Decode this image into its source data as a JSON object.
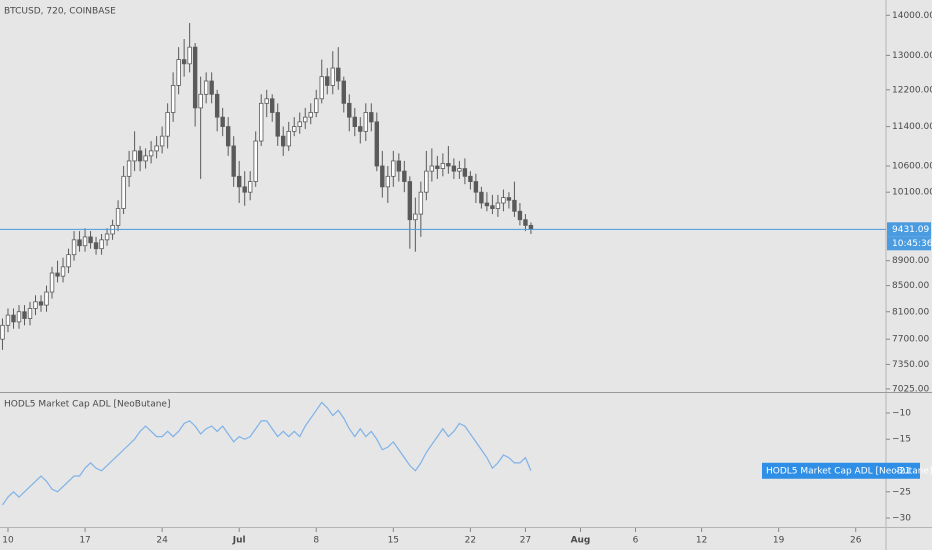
{
  "chart_data": [
    {
      "type": "candlestick",
      "title": "BTCUSD, 720, COINBASE",
      "countdown": "10:45:36",
      "log_scale": true,
      "grid": false,
      "up_color": "#ffffff",
      "down_color": "#5a5a5a",
      "wick_color": "#5a5a5a",
      "price_line_color": "#4a9be0",
      "x": [
        -1,
        0,
        1,
        2,
        3,
        4,
        5,
        6,
        7,
        8,
        9,
        10,
        11,
        12,
        13,
        14,
        15,
        16,
        17,
        18,
        19,
        20,
        21,
        22,
        23,
        24,
        25,
        26,
        27,
        28,
        29,
        30,
        31,
        32,
        33,
        34,
        35,
        36,
        37,
        38,
        39,
        40,
        41,
        42,
        43,
        44,
        45,
        46,
        47,
        48,
        49,
        50,
        51,
        52,
        53,
        54,
        55,
        56,
        57,
        58,
        59,
        60,
        61,
        62,
        63,
        64,
        65,
        66,
        67,
        68,
        69,
        70,
        71,
        72,
        73,
        74,
        75,
        76,
        77,
        78,
        79,
        80,
        81,
        82,
        83,
        84,
        85,
        86,
        87,
        88,
        89,
        90,
        91,
        92,
        93,
        94,
        95
      ],
      "open": [
        7700,
        7900,
        8050,
        7950,
        8100,
        8000,
        8150,
        8250,
        8200,
        8400,
        8700,
        8650,
        8800,
        9000,
        9250,
        9150,
        9300,
        9200,
        9100,
        9250,
        9350,
        9500,
        9800,
        10400,
        10700,
        10900,
        10700,
        10800,
        10900,
        11000,
        11200,
        11700,
        12300,
        12900,
        12800,
        13200,
        11800,
        12100,
        12400,
        12100,
        11600,
        11400,
        11000,
        10400,
        10200,
        10100,
        10300,
        11100,
        11900,
        12000,
        11700,
        11200,
        11000,
        11300,
        11400,
        11500,
        11600,
        11700,
        12000,
        12500,
        12300,
        12700,
        12400,
        11900,
        11600,
        11400,
        11300,
        11700,
        11500,
        10600,
        10200,
        10400,
        10700,
        10500,
        10300,
        9600,
        9700,
        10100,
        10500,
        10600,
        10550,
        10650,
        10600,
        10500,
        10550,
        10400,
        10300,
        10100,
        9900,
        9850,
        9800,
        9900,
        10000,
        9950,
        9750,
        9600,
        9500
      ],
      "high": [
        8000,
        8150,
        8150,
        8200,
        8200,
        8250,
        8350,
        8350,
        8500,
        8800,
        8900,
        8950,
        9100,
        9400,
        9400,
        9450,
        9400,
        9300,
        9350,
        9450,
        9600,
        9950,
        10600,
        10900,
        11300,
        11000,
        10950,
        11100,
        11200,
        11400,
        11900,
        12600,
        13200,
        13400,
        13800,
        13300,
        12500,
        12600,
        12600,
        12200,
        11800,
        11600,
        11200,
        10700,
        10500,
        10500,
        11300,
        12100,
        12200,
        12100,
        11900,
        11400,
        11500,
        11600,
        11700,
        11800,
        11900,
        12200,
        12900,
        12700,
        13100,
        13200,
        12500,
        12100,
        11800,
        11600,
        11900,
        11900,
        11700,
        10900,
        10600,
        10900,
        10850,
        10700,
        10400,
        10000,
        10300,
        10900,
        10950,
        10800,
        10850,
        11000,
        10750,
        10700,
        10750,
        10500,
        10450,
        10200,
        10100,
        10050,
        10050,
        10150,
        10100,
        10300,
        9900,
        9700,
        9550
      ],
      "low": [
        7550,
        7800,
        7850,
        7850,
        7900,
        7900,
        8050,
        8100,
        8100,
        8300,
        8550,
        8550,
        8700,
        8900,
        9050,
        9050,
        9100,
        9000,
        9000,
        9150,
        9250,
        9400,
        9700,
        10200,
        10500,
        10500,
        10550,
        10650,
        10750,
        10850,
        10950,
        11500,
        12100,
        12500,
        12600,
        11400,
        10350,
        11900,
        11900,
        11300,
        11200,
        10800,
        10200,
        9900,
        9850,
        9950,
        10200,
        11000,
        11600,
        11500,
        11000,
        10800,
        10900,
        11200,
        11250,
        11350,
        11450,
        11600,
        11900,
        12100,
        12100,
        12200,
        11700,
        11300,
        11200,
        11050,
        11100,
        11300,
        10500,
        10000,
        9900,
        10200,
        10300,
        10100,
        9100,
        9050,
        9300,
        9950,
        10300,
        10350,
        10400,
        10450,
        10350,
        10350,
        10250,
        10150,
        9900,
        9800,
        9750,
        9700,
        9650,
        9750,
        9800,
        9650,
        9500,
        9400,
        9350
      ],
      "close": [
        7900,
        8050,
        7950,
        8100,
        8000,
        8150,
        8250,
        8200,
        8400,
        8700,
        8650,
        8800,
        9000,
        9250,
        9150,
        9300,
        9200,
        9100,
        9250,
        9350,
        9500,
        9800,
        10400,
        10700,
        10900,
        10700,
        10800,
        10900,
        11000,
        11200,
        11700,
        12300,
        12900,
        12800,
        13200,
        11800,
        12100,
        12400,
        12100,
        11600,
        11400,
        11000,
        10400,
        10200,
        10100,
        10300,
        11100,
        11900,
        12000,
        11700,
        11200,
        11000,
        11300,
        11400,
        11500,
        11600,
        11700,
        12000,
        12500,
        12300,
        12700,
        12400,
        11900,
        11600,
        11400,
        11300,
        11700,
        11500,
        10600,
        10200,
        10400,
        10700,
        10500,
        10300,
        9600,
        9700,
        10100,
        10500,
        10600,
        10550,
        10650,
        10600,
        10500,
        10550,
        10400,
        10300,
        10100,
        9900,
        9850,
        9800,
        9900,
        10000,
        9950,
        9750,
        9600,
        9500,
        9431.09
      ],
      "xlim": [
        -1.45,
        159.5
      ],
      "xticks": [
        {
          "value": 0,
          "label": "10"
        },
        {
          "value": 14,
          "label": "17"
        },
        {
          "value": 28,
          "label": "24"
        },
        {
          "value": 42,
          "label": "Jul"
        },
        {
          "value": 56,
          "label": "8"
        },
        {
          "value": 70,
          "label": "15"
        },
        {
          "value": 84,
          "label": "22"
        },
        {
          "value": 94,
          "label": "27"
        },
        {
          "value": 104,
          "label": "Aug"
        },
        {
          "value": 114,
          "label": "6"
        },
        {
          "value": 126,
          "label": "12"
        },
        {
          "value": 140,
          "label": "19"
        },
        {
          "value": 154,
          "label": "26"
        }
      ],
      "ylim": [
        6985,
        14400
      ],
      "yticks": [
        {
          "value": 14000,
          "label": "14000.00"
        },
        {
          "value": 13000,
          "label": "13000.00"
        },
        {
          "value": 12200,
          "label": "12200.00"
        },
        {
          "value": 11400,
          "label": "11400.00"
        },
        {
          "value": 10600,
          "label": "10600.00"
        },
        {
          "value": 10100,
          "label": "10100.00"
        },
        {
          "value": 8900,
          "label": "8900.00"
        },
        {
          "value": 8500,
          "label": "8500.00"
        },
        {
          "value": 8100,
          "label": "8100.00"
        },
        {
          "value": 7700,
          "label": "7700.00"
        },
        {
          "value": 7350,
          "label": "7350.00"
        },
        {
          "value": 7025,
          "label": "7025.00"
        }
      ]
    },
    {
      "type": "line",
      "x": [
        -1,
        0,
        1,
        2,
        3,
        4,
        5,
        6,
        7,
        8,
        9,
        10,
        11,
        12,
        13,
        14,
        15,
        16,
        17,
        18,
        19,
        20,
        21,
        22,
        23,
        24,
        25,
        26,
        27,
        28,
        29,
        30,
        31,
        32,
        33,
        34,
        35,
        36,
        37,
        38,
        39,
        40,
        41,
        42,
        43,
        44,
        45,
        46,
        47,
        48,
        49,
        50,
        51,
        52,
        53,
        54,
        55,
        56,
        57,
        58,
        59,
        60,
        61,
        62,
        63,
        64,
        65,
        66,
        67,
        68,
        69,
        70,
        71,
        72,
        73,
        74,
        75,
        76,
        77,
        78,
        79,
        80,
        81,
        82,
        83,
        84,
        85,
        86,
        87,
        88,
        89,
        90,
        91,
        92,
        93,
        94,
        95
      ],
      "series": [
        {
          "name": "HODL5 Market Cap ADL [NeoButane]",
          "color": "#7fb2e8",
          "values": [
            -27.5,
            -26,
            -25,
            -26,
            -25,
            -24,
            -23,
            -22,
            -23,
            -24.5,
            -25,
            -24,
            -23,
            -22,
            -22,
            -20.5,
            -19.5,
            -20.5,
            -21,
            -20,
            -19,
            -18,
            -17,
            -16,
            -15,
            -13.5,
            -12.5,
            -13.5,
            -14.5,
            -14.5,
            -13.5,
            -14.5,
            -13.5,
            -12,
            -11.5,
            -12.5,
            -14,
            -13,
            -12.5,
            -13.5,
            -12.5,
            -14,
            -15.5,
            -14.5,
            -15,
            -14.5,
            -13,
            -11.5,
            -11.5,
            -13,
            -14.5,
            -13.5,
            -14.5,
            -13.5,
            -14.5,
            -12.5,
            -11,
            -9.5,
            -8,
            -9,
            -10.5,
            -9.5,
            -11,
            -13,
            -14.5,
            -13,
            -14.5,
            -13.5,
            -15,
            -17,
            -16.5,
            -15.5,
            -17,
            -18.5,
            -20,
            -21,
            -19.5,
            -17.5,
            -16,
            -14.5,
            -13,
            -14.5,
            -13.5,
            -12,
            -12.5,
            -14,
            -15.5,
            -17,
            -18.5,
            -20.5,
            -19.5,
            -18,
            -18.5,
            -19.5,
            -19.5,
            -18.5,
            -21
          ]
        }
      ],
      "label_color": "#2f8fe6",
      "xlim": [
        -1.45,
        159.5
      ],
      "ylim": [
        -31.7,
        -6.2
      ],
      "yticks": [
        {
          "value": -10,
          "label": "−10"
        },
        {
          "value": -15,
          "label": "−15"
        },
        {
          "value": -25,
          "label": "−25"
        },
        {
          "value": -30,
          "label": "−30"
        }
      ]
    }
  ]
}
